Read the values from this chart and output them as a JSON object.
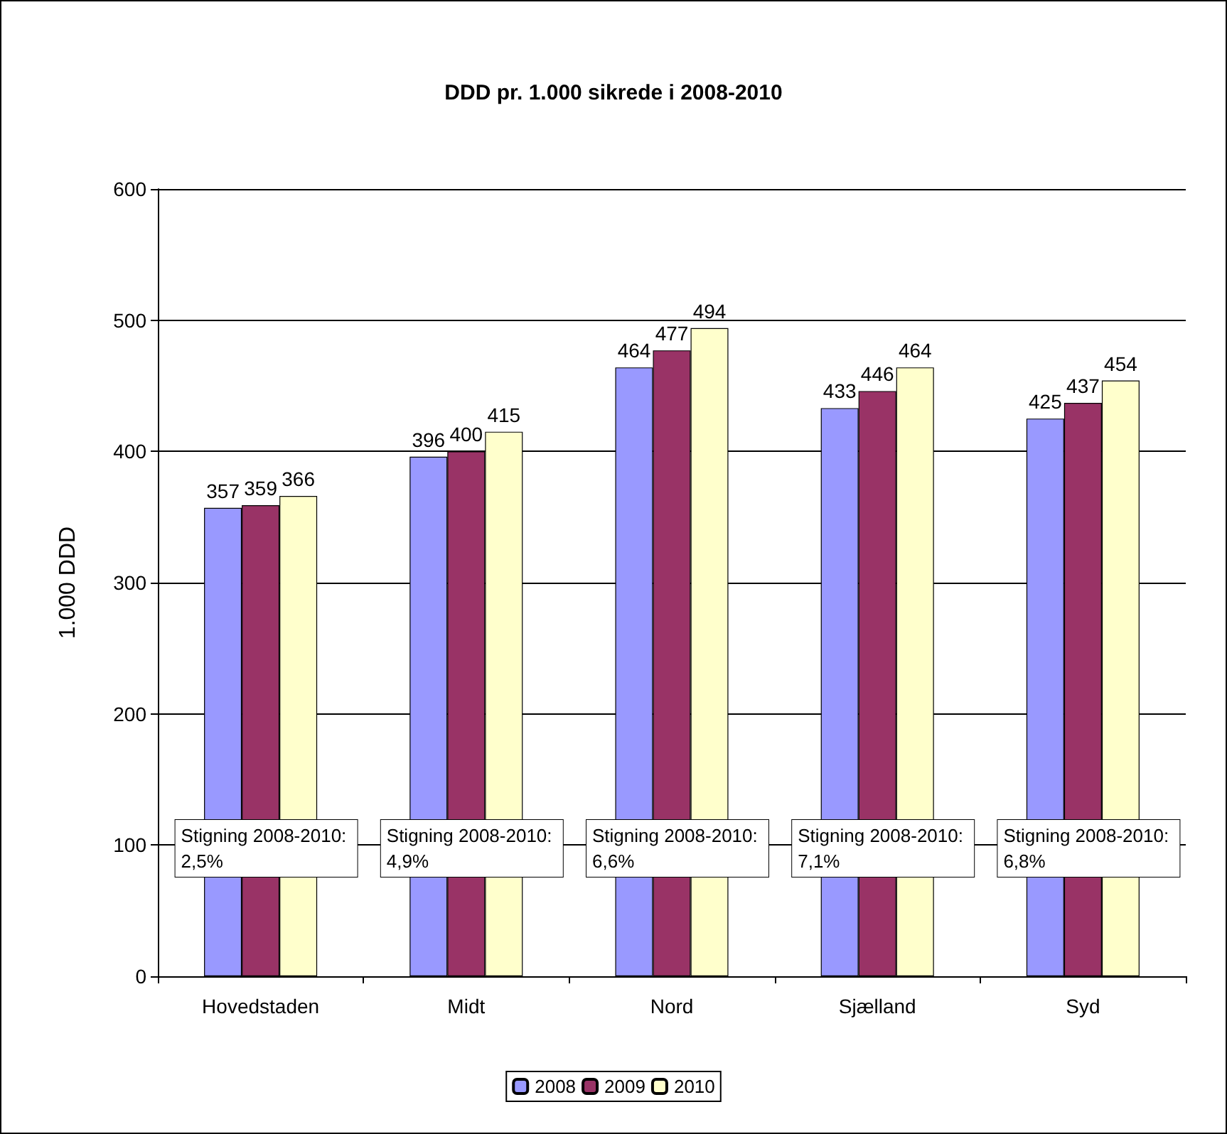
{
  "chart_data": {
    "type": "bar",
    "title": "DDD pr. 1.000 sikrede i 2008-2010",
    "ylabel": "1.000 DDD",
    "categories": [
      "Hovedstaden",
      "Midt",
      "Nord",
      "Sjælland",
      "Syd"
    ],
    "series": [
      {
        "name": "2008",
        "color": "#9999ff",
        "values": [
          357,
          396,
          464,
          433,
          425
        ]
      },
      {
        "name": "2009",
        "color": "#993366",
        "values": [
          359,
          400,
          477,
          446,
          437
        ]
      },
      {
        "name": "2010",
        "color": "#ffffcc",
        "values": [
          366,
          415,
          494,
          464,
          454
        ]
      }
    ],
    "ylim": [
      0,
      600
    ],
    "yticks": [
      0,
      100,
      200,
      300,
      400,
      500,
      600
    ],
    "grid": "y",
    "legend": "bottom",
    "data_labels": true,
    "annotations": [
      "Stigning 2008-2010: 2,5%",
      "Stigning 2008-2010: 4,9%",
      "Stigning 2008-2010: 6,6%",
      "Stigning 2008-2010: 7,1%",
      "Stigning 2008-2010: 6,8%"
    ]
  }
}
